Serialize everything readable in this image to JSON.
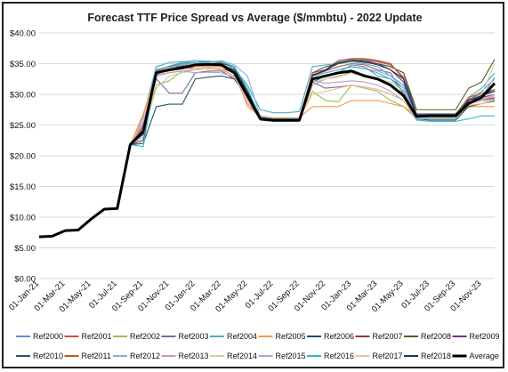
{
  "chart_data": {
    "type": "line",
    "title": "Forecast TTF Price Spread vs Average ($/mmbtu) - 2022 Update",
    "xlabel": "",
    "ylabel": "",
    "ylim": [
      0,
      40
    ],
    "yticks": [
      "$0.00",
      "$5.00",
      "$10.00",
      "$15.00",
      "$20.00",
      "$25.00",
      "$30.00",
      "$35.00",
      "$40.00"
    ],
    "ytick_values": [
      0,
      5,
      10,
      15,
      20,
      25,
      30,
      35,
      40
    ],
    "grid": "horizontal",
    "legend_position": "bottom",
    "x": [
      "01-Jan-21",
      "01-Feb-21",
      "01-Mar-21",
      "01-Apr-21",
      "01-May-21",
      "01-Jun-21",
      "01-Jul-21",
      "01-Aug-21",
      "01-Sep-21",
      "01-Oct-21",
      "01-Nov-21",
      "01-Dec-21",
      "01-Jan-22",
      "01-Feb-22",
      "01-Mar-22",
      "01-Apr-22",
      "01-May-22",
      "01-Jun-22",
      "01-Jul-22",
      "01-Aug-22",
      "01-Sep-22",
      "01-Oct-22",
      "01-Nov-22",
      "01-Dec-22",
      "01-Jan-23",
      "01-Feb-23",
      "01-Mar-23",
      "01-Apr-23",
      "01-May-23",
      "01-Jun-23",
      "01-Jul-23",
      "01-Aug-23",
      "01-Sep-23",
      "01-Oct-23",
      "01-Nov-23",
      "01-Dec-23"
    ],
    "xticks": [
      "01-Jan-21",
      "01-Mar-21",
      "01-May-21",
      "01-Jul-21",
      "01-Sep-21",
      "01-Nov-21",
      "01-Jan-22",
      "01-Mar-22",
      "01-May-22",
      "01-Jul-22",
      "01-Sep-22",
      "01-Nov-22",
      "01-Jan-23",
      "01-Mar-23",
      "01-May-23",
      "01-Jul-23",
      "01-Sep-23",
      "01-Nov-23"
    ],
    "series": [
      {
        "name": "Ref2000",
        "color": "#5b8fd6",
        "values": [
          6.8,
          6.9,
          7.8,
          7.9,
          9.7,
          11.3,
          11.4,
          21.8,
          22.5,
          33.8,
          34.6,
          35.2,
          35.2,
          35.4,
          35.0,
          33.8,
          29.5,
          26.4,
          26.0,
          26.0,
          26.0,
          32.5,
          33.0,
          33.5,
          34.8,
          34.5,
          33.0,
          32.5,
          31.0,
          26.8,
          26.6,
          26.6,
          26.6,
          29.0,
          30.5,
          32.5
        ]
      },
      {
        "name": "Ref2001",
        "color": "#c0504d",
        "values": [
          6.8,
          6.9,
          7.8,
          7.9,
          9.7,
          11.3,
          11.4,
          21.8,
          24.5,
          34.0,
          34.5,
          34.8,
          35.0,
          35.0,
          34.6,
          34.0,
          29.0,
          26.0,
          25.8,
          25.8,
          25.8,
          33.0,
          33.8,
          34.5,
          35.0,
          34.8,
          34.0,
          33.5,
          30.0,
          26.5,
          26.4,
          26.4,
          26.4,
          28.5,
          29.0,
          29.3
        ]
      },
      {
        "name": "Ref2002",
        "color": "#9bbb59",
        "values": [
          6.8,
          6.9,
          7.8,
          7.9,
          9.7,
          11.3,
          11.4,
          21.8,
          24.0,
          31.5,
          32.2,
          33.8,
          34.0,
          34.5,
          34.0,
          33.0,
          29.8,
          26.3,
          26.0,
          26.0,
          26.0,
          30.5,
          29.0,
          28.8,
          31.5,
          31.0,
          30.5,
          29.0,
          28.0,
          26.0,
          26.0,
          26.0,
          26.0,
          28.0,
          28.5,
          29.0
        ]
      },
      {
        "name": "Ref2003",
        "color": "#8064a2",
        "values": [
          6.8,
          6.9,
          7.8,
          7.9,
          9.7,
          11.3,
          11.4,
          21.8,
          26.0,
          32.5,
          30.2,
          30.2,
          33.5,
          33.8,
          33.8,
          32.5,
          30.2,
          26.5,
          26.2,
          26.2,
          26.2,
          32.0,
          31.0,
          31.2,
          31.5,
          31.2,
          30.8,
          30.0,
          29.0,
          26.2,
          26.2,
          26.2,
          26.2,
          28.8,
          29.0,
          29.5
        ]
      },
      {
        "name": "Ref2004",
        "color": "#4bacc6",
        "values": [
          6.8,
          6.9,
          7.8,
          7.9,
          9.7,
          11.3,
          11.4,
          21.8,
          26.5,
          34.5,
          35.2,
          35.3,
          35.5,
          35.4,
          35.3,
          34.2,
          31.5,
          27.5,
          27.0,
          27.0,
          27.2,
          34.5,
          34.8,
          35.0,
          35.3,
          35.0,
          34.5,
          33.0,
          31.5,
          26.8,
          26.8,
          26.8,
          26.8,
          29.5,
          31.0,
          33.5
        ]
      },
      {
        "name": "Ref2005",
        "color": "#f79646",
        "values": [
          6.8,
          6.9,
          7.8,
          7.9,
          9.7,
          11.3,
          11.4,
          21.8,
          26.8,
          33.5,
          33.8,
          34.2,
          34.5,
          34.6,
          34.5,
          34.0,
          28.0,
          26.5,
          26.2,
          26.2,
          26.2,
          28.0,
          28.0,
          28.0,
          29.0,
          29.0,
          29.0,
          28.5,
          28.0,
          26.5,
          26.5,
          26.5,
          26.5,
          28.0,
          28.0,
          28.0
        ]
      },
      {
        "name": "Ref2006",
        "color": "#1f497d",
        "values": [
          6.8,
          6.9,
          7.8,
          7.9,
          9.7,
          11.3,
          11.4,
          21.8,
          23.5,
          33.5,
          34.0,
          34.5,
          34.8,
          35.0,
          34.8,
          33.5,
          30.5,
          26.2,
          26.0,
          26.0,
          26.0,
          33.5,
          34.0,
          35.0,
          35.5,
          35.2,
          35.0,
          34.5,
          33.5,
          26.8,
          26.8,
          26.8,
          26.8,
          29.0,
          30.0,
          30.5
        ]
      },
      {
        "name": "Ref2007",
        "color": "#943634",
        "values": [
          6.8,
          6.9,
          7.8,
          7.9,
          9.7,
          11.3,
          11.4,
          21.8,
          22.5,
          33.8,
          34.5,
          35.0,
          35.2,
          35.3,
          35.2,
          34.5,
          30.0,
          26.2,
          26.0,
          26.0,
          26.0,
          33.0,
          34.0,
          35.5,
          35.8,
          35.8,
          35.5,
          35.0,
          32.5,
          26.5,
          26.5,
          26.5,
          26.5,
          29.0,
          29.5,
          30.0
        ]
      },
      {
        "name": "Ref2008",
        "color": "#4f6228",
        "values": [
          6.8,
          6.9,
          7.8,
          7.9,
          9.7,
          11.3,
          11.4,
          21.8,
          24.0,
          33.8,
          34.5,
          34.5,
          34.8,
          35.0,
          35.0,
          34.5,
          30.5,
          26.2,
          26.0,
          26.0,
          26.0,
          33.5,
          34.5,
          35.0,
          35.5,
          35.5,
          35.0,
          34.5,
          33.5,
          27.5,
          27.5,
          27.5,
          27.5,
          31.0,
          32.0,
          35.7
        ]
      },
      {
        "name": "Ref2009",
        "color": "#7030a0",
        "values": [
          6.8,
          6.9,
          7.8,
          7.9,
          9.7,
          11.3,
          11.4,
          21.8,
          25.0,
          33.5,
          34.0,
          34.5,
          34.2,
          34.4,
          34.2,
          33.5,
          30.0,
          26.2,
          26.0,
          26.0,
          26.0,
          33.2,
          33.8,
          35.2,
          35.5,
          35.3,
          35.0,
          34.0,
          32.0,
          26.5,
          26.5,
          26.5,
          26.5,
          29.2,
          30.0,
          30.8
        ]
      },
      {
        "name": "Ref2010",
        "color": "#215968",
        "values": [
          6.8,
          6.9,
          7.8,
          7.9,
          9.7,
          11.3,
          11.4,
          21.8,
          22.0,
          28.0,
          28.4,
          28.4,
          32.5,
          32.8,
          33.0,
          32.5,
          29.5,
          25.8,
          25.6,
          25.6,
          25.6,
          32.0,
          33.0,
          33.5,
          33.5,
          33.0,
          32.5,
          31.5,
          30.0,
          26.0,
          25.8,
          25.8,
          25.8,
          28.0,
          28.5,
          29.0
        ]
      },
      {
        "name": "Ref2011",
        "color": "#c55a11",
        "values": [
          6.8,
          6.9,
          7.8,
          7.9,
          9.7,
          11.3,
          11.4,
          21.8,
          24.5,
          33.8,
          34.4,
          34.6,
          34.8,
          34.9,
          34.8,
          34.0,
          30.5,
          26.3,
          26.1,
          26.1,
          26.1,
          33.5,
          34.0,
          35.2,
          35.6,
          35.6,
          35.3,
          34.8,
          32.8,
          26.6,
          26.6,
          26.6,
          26.6,
          29.5,
          30.2,
          30.8
        ]
      },
      {
        "name": "Ref2012",
        "color": "#8eaadb",
        "values": [
          6.8,
          6.9,
          7.8,
          7.9,
          9.7,
          11.3,
          11.4,
          21.8,
          23.0,
          34.0,
          34.4,
          34.8,
          35.0,
          35.2,
          35.5,
          34.8,
          33.0,
          26.4,
          26.2,
          26.2,
          26.2,
          33.0,
          33.5,
          34.0,
          34.5,
          34.2,
          33.8,
          33.0,
          31.0,
          26.2,
          26.2,
          26.2,
          26.2,
          28.5,
          29.5,
          32.8
        ]
      },
      {
        "name": "Ref2013",
        "color": "#d99694",
        "values": [
          6.8,
          6.9,
          7.8,
          7.9,
          9.7,
          11.3,
          11.4,
          21.8,
          24.8,
          33.2,
          33.5,
          33.8,
          34.0,
          34.2,
          34.0,
          33.0,
          28.5,
          26.0,
          25.8,
          25.8,
          25.8,
          31.5,
          32.5,
          33.0,
          33.5,
          33.2,
          32.5,
          31.5,
          29.5,
          26.2,
          26.2,
          26.2,
          26.2,
          28.5,
          29.0,
          29.8
        ]
      },
      {
        "name": "Ref2014",
        "color": "#c3d69b",
        "values": [
          6.8,
          6.9,
          7.8,
          7.9,
          9.7,
          11.3,
          11.4,
          21.8,
          24.0,
          31.0,
          33.0,
          33.5,
          34.0,
          34.2,
          34.0,
          33.5,
          30.0,
          26.0,
          25.8,
          25.8,
          25.8,
          32.0,
          32.5,
          32.8,
          33.5,
          33.2,
          32.5,
          32.0,
          30.5,
          26.2,
          26.2,
          26.2,
          26.2,
          29.0,
          30.0,
          35.0
        ]
      },
      {
        "name": "Ref2015",
        "color": "#b3a2c7",
        "values": [
          6.8,
          6.9,
          7.8,
          7.9,
          9.7,
          11.3,
          11.4,
          21.8,
          25.5,
          33.0,
          33.5,
          33.8,
          33.5,
          33.6,
          33.5,
          32.8,
          29.2,
          26.0,
          25.8,
          25.8,
          25.8,
          32.2,
          31.8,
          32.0,
          32.2,
          32.0,
          31.5,
          30.5,
          29.0,
          26.0,
          26.0,
          26.0,
          26.0,
          28.5,
          29.2,
          30.0
        ]
      },
      {
        "name": "Ref2016",
        "color": "#31b6c4",
        "values": [
          6.8,
          6.9,
          7.8,
          7.9,
          9.7,
          11.3,
          11.4,
          21.8,
          21.5,
          34.0,
          34.5,
          35.0,
          35.2,
          35.3,
          35.3,
          34.5,
          31.0,
          26.2,
          26.0,
          26.0,
          26.0,
          33.0,
          33.5,
          34.0,
          34.5,
          34.2,
          33.5,
          32.5,
          30.5,
          25.8,
          25.6,
          25.6,
          25.6,
          26.0,
          26.5,
          26.5
        ]
      },
      {
        "name": "Ref2017",
        "color": "#fac090",
        "values": [
          6.8,
          6.9,
          7.8,
          7.9,
          9.7,
          11.3,
          11.4,
          21.8,
          26.0,
          33.5,
          34.0,
          34.2,
          34.2,
          34.4,
          34.2,
          33.0,
          29.0,
          26.5,
          26.2,
          26.2,
          26.2,
          30.0,
          30.5,
          31.0,
          31.5,
          31.2,
          30.8,
          30.0,
          29.0,
          26.5,
          26.5,
          26.5,
          26.5,
          28.2,
          28.5,
          28.8
        ]
      },
      {
        "name": "Ref2018",
        "color": "#17375e",
        "values": [
          6.8,
          6.9,
          7.8,
          7.9,
          9.7,
          11.3,
          11.4,
          21.8,
          23.5,
          33.5,
          34.0,
          34.6,
          34.8,
          35.0,
          34.8,
          34.0,
          30.5,
          26.0,
          25.8,
          25.8,
          25.8,
          33.0,
          34.0,
          35.2,
          35.5,
          35.3,
          34.8,
          34.0,
          32.5,
          26.5,
          26.5,
          26.5,
          26.5,
          29.0,
          29.8,
          30.5
        ]
      },
      {
        "name": "Average",
        "color": "#000000",
        "values": [
          6.8,
          6.9,
          7.8,
          7.9,
          9.7,
          11.3,
          11.4,
          21.8,
          24.0,
          33.5,
          34.0,
          34.3,
          34.8,
          34.9,
          34.8,
          33.5,
          29.8,
          26.0,
          25.8,
          25.8,
          25.8,
          32.5,
          33.0,
          33.5,
          33.8,
          33.0,
          32.5,
          31.5,
          29.8,
          26.4,
          26.5,
          26.5,
          26.5,
          28.5,
          29.5,
          31.8
        ]
      }
    ]
  }
}
